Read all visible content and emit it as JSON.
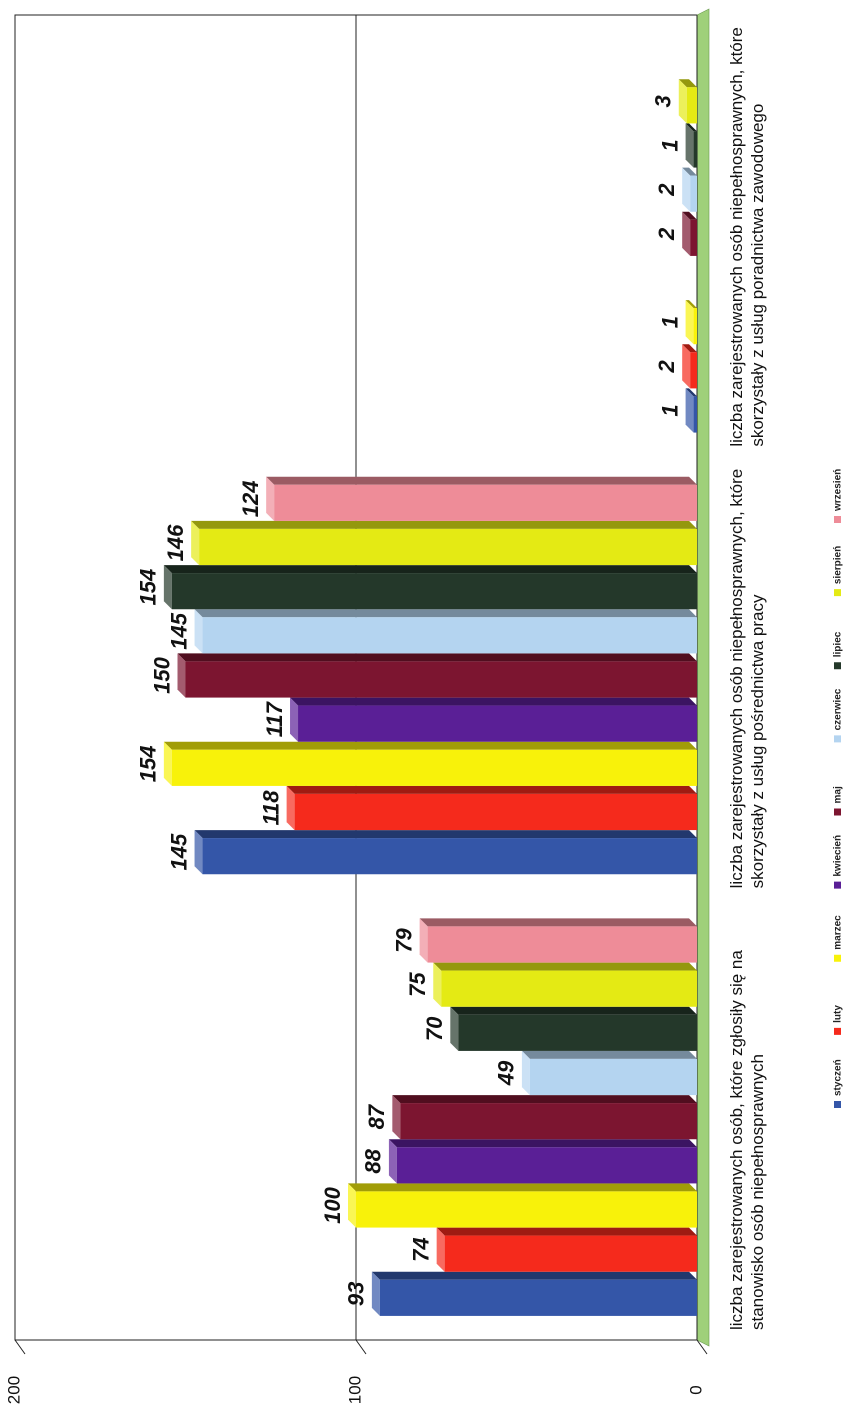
{
  "chart_data": {
    "type": "bar",
    "categories": [
      "liczba zarejestrowanych osób, które zgłosiły się na stanowisko osób niepełnosprawnych",
      "liczba zarejestrowanych osób niepełnosprawnych, które skorzystały z usług pośrednictwa pracy",
      "liczba zarejestrowanych osób niepełnosprawnych, które skorzystały z usług poradnictwa zawodowego"
    ],
    "series": [
      {
        "name": "styczeń",
        "color": "#3456a8",
        "values": [
          93,
          145,
          1
        ]
      },
      {
        "name": "luty",
        "color": "#f52a1c",
        "values": [
          74,
          118,
          2
        ]
      },
      {
        "name": "marzec",
        "color": "#f8f20a",
        "values": [
          100,
          154,
          1
        ]
      },
      {
        "name": "kwiecień",
        "color": "#5a1f96",
        "values": [
          88,
          117,
          null
        ]
      },
      {
        "name": "maj",
        "color": "#7c1530",
        "values": [
          87,
          150,
          2
        ]
      },
      {
        "name": "czerwiec",
        "color": "#b4d4f0",
        "values": [
          49,
          145,
          2
        ]
      },
      {
        "name": "lipiec",
        "color": "#24382a",
        "values": [
          70,
          154,
          1
        ]
      },
      {
        "name": "sierpień",
        "color": "#e4ea14",
        "values": [
          75,
          146,
          3
        ]
      },
      {
        "name": "wrzesień",
        "color": "#ee8c98",
        "values": [
          79,
          124,
          null
        ]
      }
    ],
    "ylim": [
      0,
      200
    ],
    "yticks": [
      0,
      100,
      200
    ],
    "grid": true,
    "legend": "bottom"
  }
}
